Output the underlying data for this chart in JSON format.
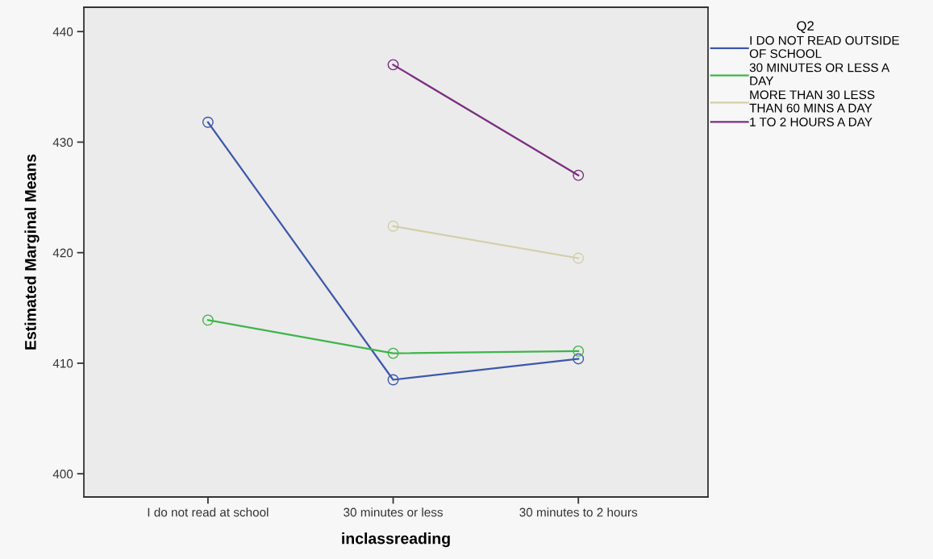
{
  "chart_data": {
    "type": "line",
    "xlabel": "inclassreading",
    "ylabel": "Estimated Marginal Means",
    "legend_title": "Q2",
    "categories": [
      "I do not read at school",
      "30 minutes or less",
      "30 minutes to 2 hours"
    ],
    "series": [
      {
        "name": "I DO NOT READ OUTSIDE\nOF SCHOOL",
        "color": "#3e58ac",
        "values": [
          431.8,
          408.5,
          410.4
        ]
      },
      {
        "name": "30 MINUTES OR LESS A\nDAY",
        "color": "#3eb54a",
        "values": [
          413.9,
          410.9,
          411.1
        ]
      },
      {
        "name": "MORE THAN 30 LESS\nTHAN 60 MINS A DAY",
        "color": "#d3ceaa",
        "values": [
          null,
          422.4,
          419.5
        ]
      },
      {
        "name": "1 TO 2 HOURS A DAY",
        "color": "#7a2f7f",
        "values": [
          null,
          437.0,
          427.0
        ]
      }
    ],
    "ylim": [
      397.9,
      442.2
    ],
    "yticks": [
      400,
      410,
      420,
      430,
      440
    ],
    "grid": false,
    "legend": "top right",
    "marker": "circle",
    "line_style": "solid"
  }
}
